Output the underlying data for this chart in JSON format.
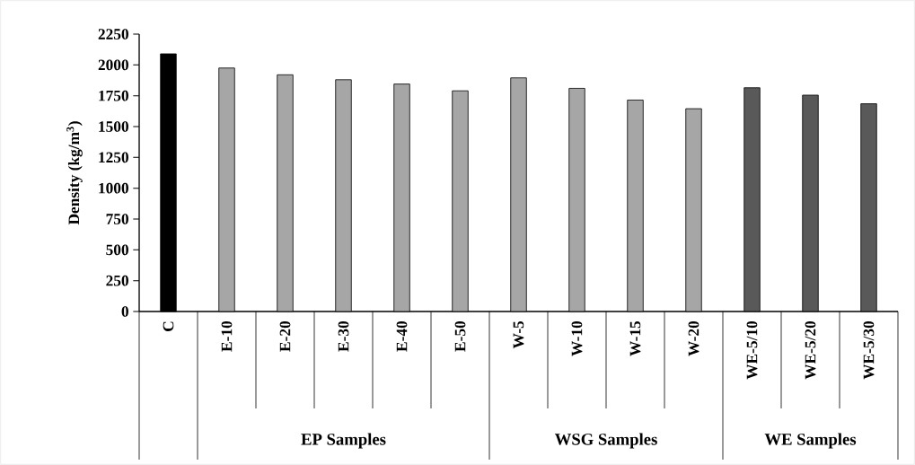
{
  "chart_data": {
    "type": "bar",
    "ylabel": "Density (kg/m$^{3}$)",
    "categories": [
      "C",
      "E-10",
      "E-20",
      "E-30",
      "E-40",
      "E-50",
      "W-5",
      "W-10",
      "W-15",
      "W-20",
      "WE-5/10",
      "WE-5/20",
      "WE-5/30"
    ],
    "values": [
      2090,
      1975,
      1920,
      1880,
      1845,
      1790,
      1895,
      1810,
      1715,
      1645,
      1815,
      1755,
      1685
    ],
    "colors": [
      "#000000",
      "#a6a6a6",
      "#a6a6a6",
      "#a6a6a6",
      "#a6a6a6",
      "#a6a6a6",
      "#a6a6a6",
      "#a6a6a6",
      "#a6a6a6",
      "#a6a6a6",
      "#595959",
      "#595959",
      "#595959"
    ],
    "ylim": [
      0,
      2250
    ],
    "yticks": [
      0,
      250,
      500,
      750,
      1000,
      1250,
      1500,
      1750,
      2000,
      2250
    ],
    "annotations": [
      "EP Samples",
      "WSG Samples",
      "WE Samples"
    ],
    "grid": false
  }
}
